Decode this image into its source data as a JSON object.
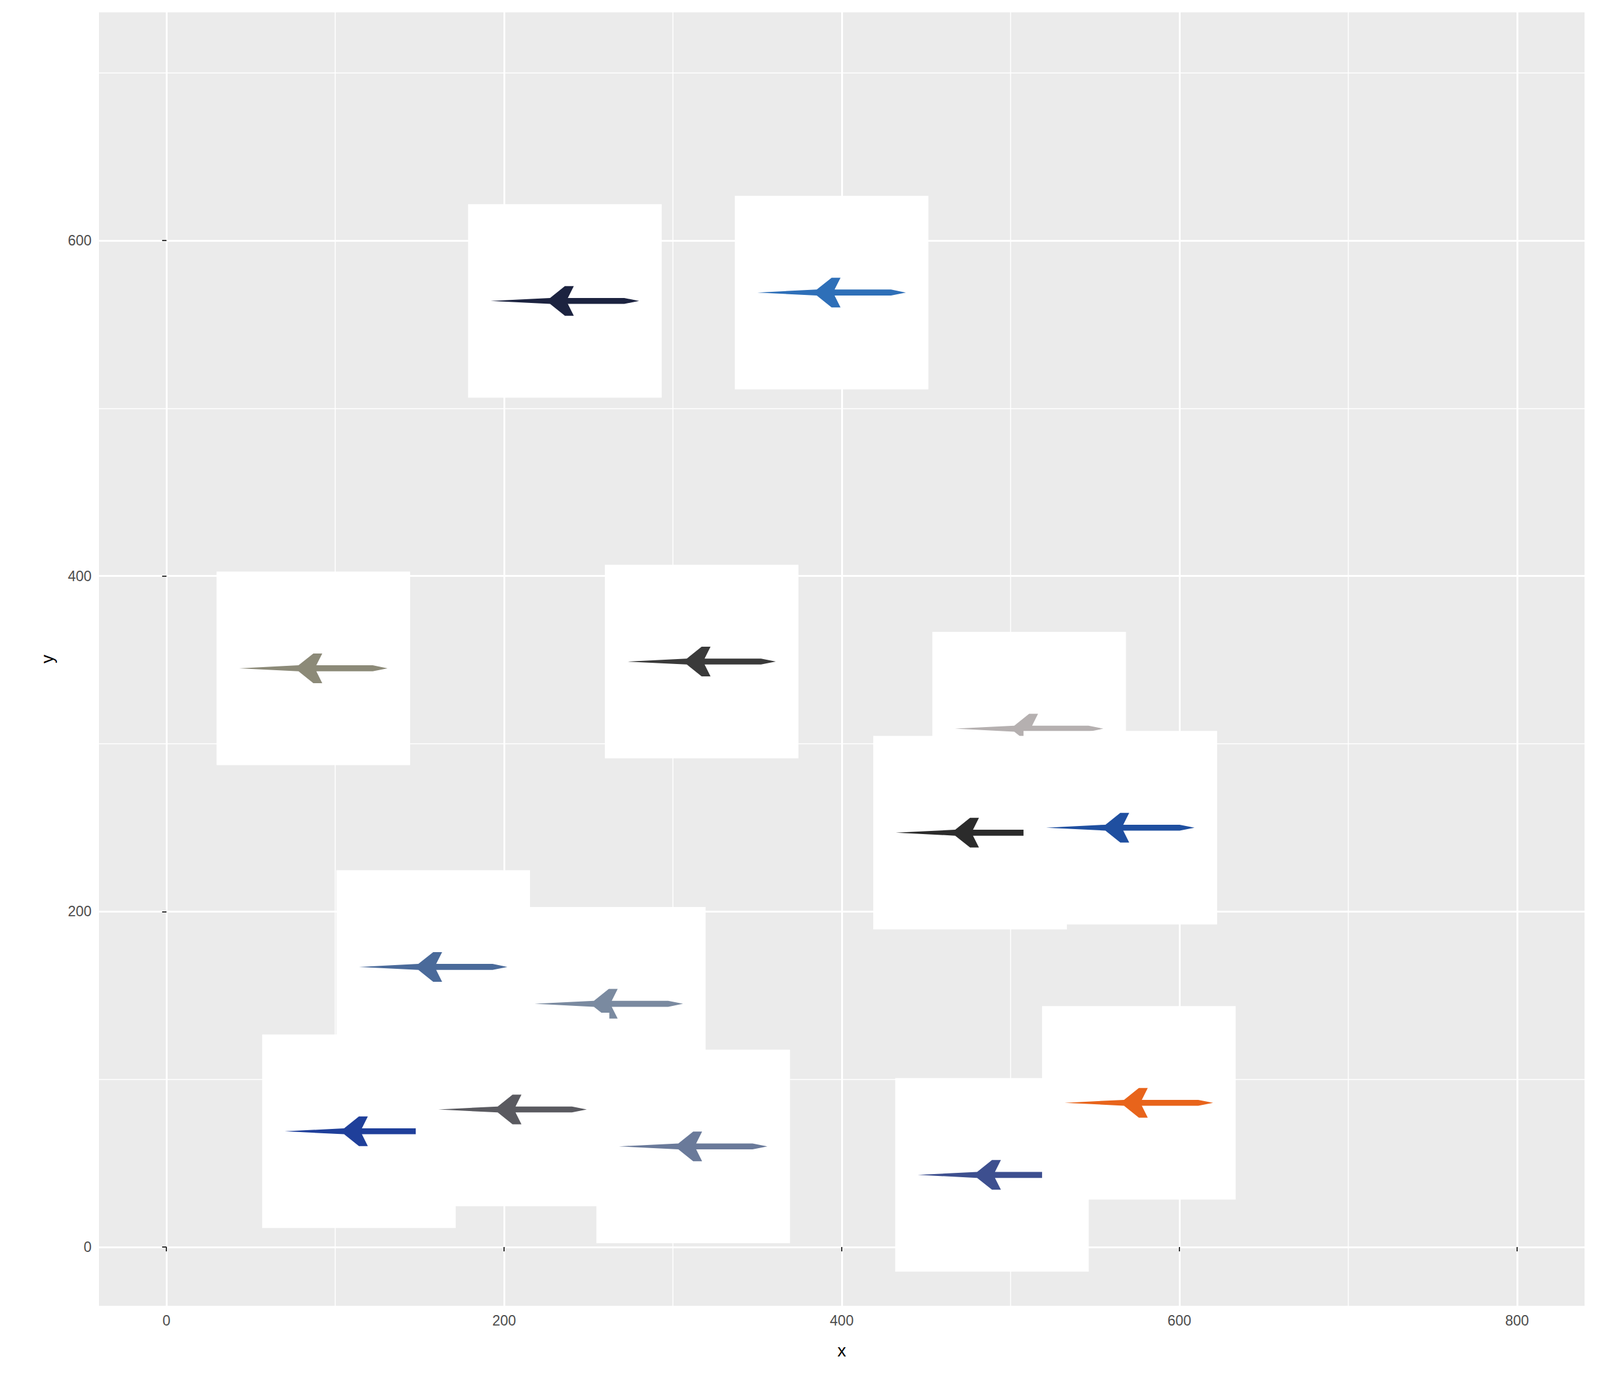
{
  "chart_data": {
    "type": "scatter",
    "x_label": "x",
    "y_label": "y",
    "x": [
      236,
      394,
      87,
      317,
      511,
      476,
      565,
      158,
      262,
      114,
      205,
      312,
      489,
      576
    ],
    "values": [
      564,
      569,
      345,
      349,
      309,
      247,
      250,
      167,
      145,
      69,
      82,
      60,
      43,
      86
    ],
    "colors": [
      "#1c2340",
      "#2e6fb8",
      "#8c8a78",
      "#3a3a3a",
      "#b5b0b0",
      "#2b2b2b",
      "#1f4fa0",
      "#4a6a9a",
      "#7a8aa0",
      "#1f3f9a",
      "#5a5a60",
      "#6a7a9a",
      "#3d4f8f",
      "#e8641b"
    ],
    "marker": "square",
    "xlim": [
      -40,
      840
    ],
    "xticks": [
      0,
      200,
      400,
      600,
      800
    ],
    "ylim": [
      -35,
      736
    ],
    "yticks": [
      0,
      200,
      400,
      600
    ],
    "grid": true
  }
}
